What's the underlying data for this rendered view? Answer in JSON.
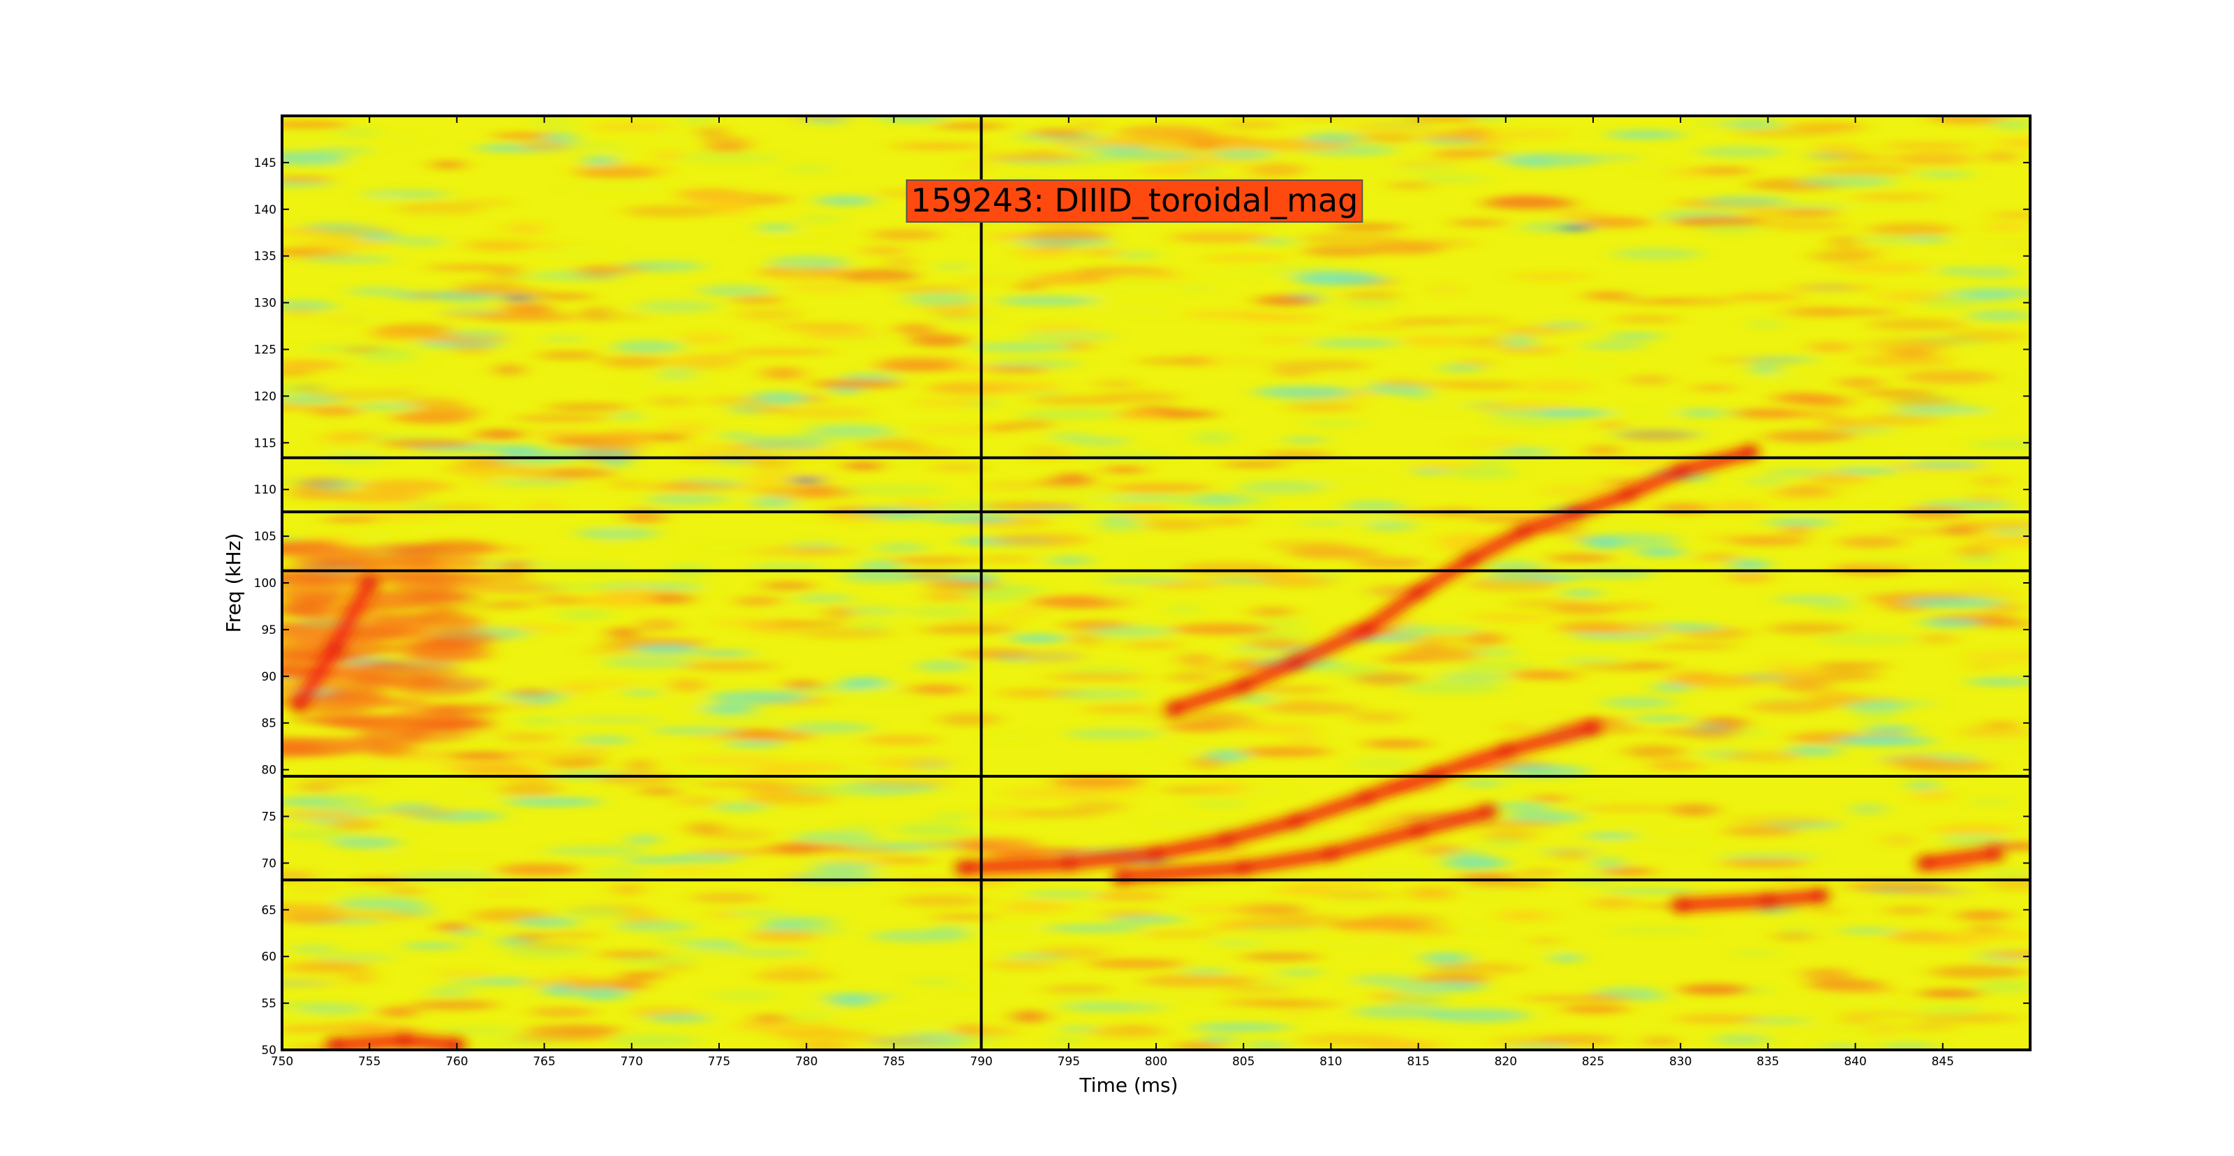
{
  "chart_data": {
    "type": "heatmap",
    "title": "159243: DIIID_toroidal_mag",
    "title_box_color": "#ff4a0f",
    "xlabel": "Time (ms)",
    "ylabel": "Freq (kHz)",
    "xlim": [
      750,
      850
    ],
    "ylim": [
      50,
      150
    ],
    "x_ticks": [
      750,
      755,
      760,
      765,
      770,
      775,
      780,
      785,
      790,
      795,
      800,
      805,
      810,
      815,
      820,
      825,
      830,
      835,
      840,
      845
    ],
    "y_ticks": [
      50,
      55,
      60,
      65,
      70,
      75,
      80,
      85,
      90,
      95,
      100,
      105,
      110,
      115,
      120,
      125,
      130,
      135,
      140,
      145
    ],
    "colormap": "jet",
    "vertical_marker": 790,
    "horizontal_markers": [
      68.2,
      79.3,
      101.3,
      107.6,
      113.4
    ],
    "features": [
      {
        "name": "upper chirp",
        "points": [
          [
            801,
            86.5
          ],
          [
            805,
            89
          ],
          [
            808,
            91.5
          ],
          [
            812,
            95
          ],
          [
            815,
            99
          ],
          [
            818,
            102.5
          ],
          [
            821,
            105.5
          ],
          [
            824,
            107.5
          ],
          [
            827,
            109.5
          ],
          [
            830,
            112
          ],
          [
            834,
            114
          ]
        ]
      },
      {
        "name": "lower chirp",
        "points": [
          [
            789,
            69.5
          ],
          [
            795,
            70
          ],
          [
            800,
            71
          ],
          [
            804,
            72.5
          ],
          [
            808,
            74.5
          ],
          [
            812,
            77
          ],
          [
            816,
            79.5
          ],
          [
            820,
            82
          ],
          [
            825,
            84.5
          ]
        ]
      },
      {
        "name": "lower band",
        "points": [
          [
            798,
            68.5
          ],
          [
            805,
            69.5
          ],
          [
            810,
            71
          ],
          [
            815,
            73.5
          ],
          [
            819,
            75.5
          ]
        ]
      },
      {
        "name": "low-freq patch",
        "points": [
          [
            830,
            65.5
          ],
          [
            835,
            66
          ],
          [
            838,
            66.5
          ]
        ]
      },
      {
        "name": "right patch",
        "points": [
          [
            844,
            70
          ],
          [
            848,
            71
          ]
        ]
      },
      {
        "name": "left region",
        "points": [
          [
            751,
            87
          ],
          [
            753,
            93
          ],
          [
            755,
            100
          ]
        ]
      },
      {
        "name": "bottom-left patch",
        "points": [
          [
            753,
            50.5
          ],
          [
            757,
            51
          ],
          [
            760,
            50.5
          ]
        ]
      }
    ]
  }
}
